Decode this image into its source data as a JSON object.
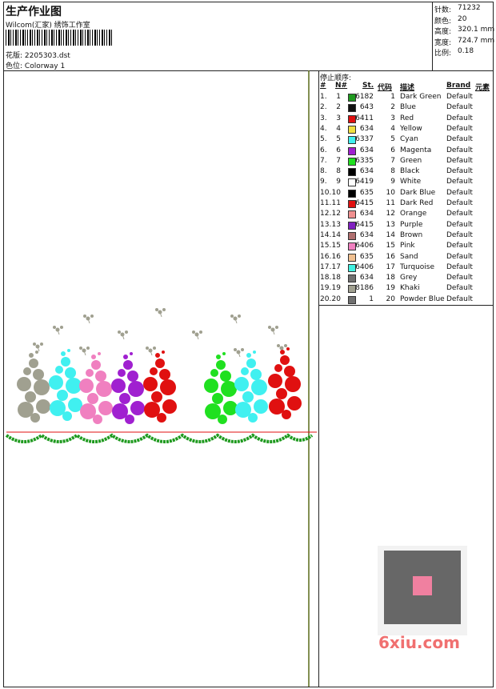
{
  "header": {
    "title": "生产作业图",
    "company": "Wilcom(汇家) 绣饰工作室",
    "design_label": "花版:",
    "design": "2205303.dst",
    "colorway_label": "色位:",
    "colorway": "Colorway 1"
  },
  "info": [
    {
      "label": "针数:",
      "value": "71232"
    },
    {
      "label": "颜色:",
      "value": "20"
    },
    {
      "label": "高度:",
      "value": "320.1 mm"
    },
    {
      "label": "宽度:",
      "value": "724.7 mm"
    },
    {
      "label": "比例:",
      "value": "0.18"
    }
  ],
  "table": {
    "caption": "停止顺序:",
    "columns": [
      "#",
      "N#",
      "St.",
      "代码",
      "描述",
      "Brand",
      "元素"
    ],
    "rows": [
      {
        "index": "1.",
        "needle": "1",
        "color": "#1f9a1f",
        "stitches": "6182",
        "code": "1",
        "description": "Dark Green",
        "brand": "Default"
      },
      {
        "index": "2.",
        "needle": "2",
        "color": "#111111",
        "stitches": "643",
        "code": "2",
        "description": "Blue",
        "brand": "Default"
      },
      {
        "index": "3.",
        "needle": "3",
        "color": "#e01010",
        "stitches": "6411",
        "code": "3",
        "description": "Red",
        "brand": "Default"
      },
      {
        "index": "4.",
        "needle": "4",
        "color": "#f0e040",
        "stitches": "634",
        "code": "4",
        "description": "Yellow",
        "brand": "Default"
      },
      {
        "index": "5.",
        "needle": "5",
        "color": "#40f0f0",
        "stitches": "6337",
        "code": "5",
        "description": "Cyan",
        "brand": "Default"
      },
      {
        "index": "6.",
        "needle": "6",
        "color": "#a020d0",
        "stitches": "634",
        "code": "6",
        "description": "Magenta",
        "brand": "Default"
      },
      {
        "index": "7.",
        "needle": "7",
        "color": "#20e020",
        "stitches": "6335",
        "code": "7",
        "description": "Green",
        "brand": "Default"
      },
      {
        "index": "8.",
        "needle": "8",
        "color": "#000000",
        "stitches": "634",
        "code": "8",
        "description": "Black",
        "brand": "Default"
      },
      {
        "index": "9.",
        "needle": "9",
        "color": "#ffffff",
        "stitches": "6419",
        "code": "9",
        "description": "White",
        "brand": "Default"
      },
      {
        "index": "10.",
        "needle": "10",
        "color": "#000000",
        "stitches": "635",
        "code": "10",
        "description": "Dark Blue",
        "brand": "Default"
      },
      {
        "index": "11.",
        "needle": "11",
        "color": "#e01010",
        "stitches": "6415",
        "code": "11",
        "description": "Dark Red",
        "brand": "Default"
      },
      {
        "index": "12.",
        "needle": "12",
        "color": "#f09090",
        "stitches": "634",
        "code": "12",
        "description": "Orange",
        "brand": "Default"
      },
      {
        "index": "13.",
        "needle": "13",
        "color": "#8020c0",
        "stitches": "6415",
        "code": "13",
        "description": "Purple",
        "brand": "Default"
      },
      {
        "index": "14.",
        "needle": "14",
        "color": "#b07070",
        "stitches": "634",
        "code": "14",
        "description": "Brown",
        "brand": "Default"
      },
      {
        "index": "15.",
        "needle": "15",
        "color": "#f080c0",
        "stitches": "6406",
        "code": "15",
        "description": "Pink",
        "brand": "Default"
      },
      {
        "index": "16.",
        "needle": "16",
        "color": "#f0c090",
        "stitches": "635",
        "code": "16",
        "description": "Sand",
        "brand": "Default"
      },
      {
        "index": "17.",
        "needle": "17",
        "color": "#40f0e0",
        "stitches": "6406",
        "code": "17",
        "description": "Turquoise",
        "brand": "Default"
      },
      {
        "index": "18.",
        "needle": "18",
        "color": "#707070",
        "stitches": "634",
        "code": "18",
        "description": "Grey",
        "brand": "Default"
      },
      {
        "index": "19.",
        "needle": "19",
        "color": "#a0a090",
        "stitches": "8186",
        "code": "19",
        "description": "Khaki",
        "brand": "Default"
      },
      {
        "index": "20.",
        "needle": "20",
        "color": "#707070",
        "stitches": "1",
        "code": "20",
        "description": "Powder Blue",
        "brand": "Default"
      }
    ]
  },
  "watermark": "6xiu.com"
}
